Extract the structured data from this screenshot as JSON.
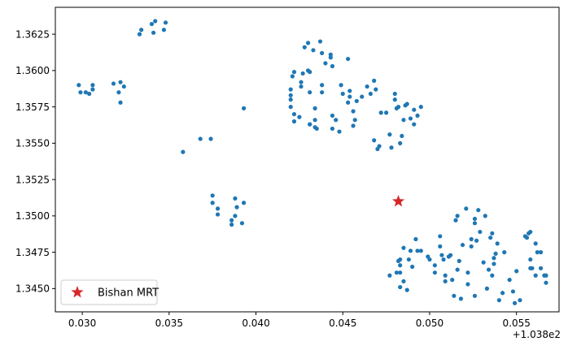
{
  "chart_data": {
    "type": "scatter",
    "title": "",
    "xlabel": "",
    "ylabel": "",
    "xlim": [
      0.02845,
      0.05745
    ],
    "ylim": [
      1.3434,
      1.36435
    ],
    "x_offset_label": "+1.038e2",
    "xticks": [
      0.03,
      0.035,
      0.04,
      0.045,
      0.05,
      0.055
    ],
    "xtick_labels": [
      "0.030",
      "0.035",
      "0.040",
      "0.045",
      "0.050",
      "0.055"
    ],
    "yticks": [
      1.345,
      1.3475,
      1.35,
      1.3525,
      1.355,
      1.3575,
      1.36,
      1.3625
    ],
    "ytick_labels": [
      "1.3450",
      "1.3475",
      "1.3500",
      "1.3525",
      "1.3550",
      "1.3575",
      "1.3600",
      "1.3625"
    ],
    "grid": false,
    "legend": {
      "location": "lower-left",
      "entries": [
        "Bishan MRT"
      ]
    },
    "series": [
      {
        "color": "#1f77b4",
        "marker": "dot",
        "points": [
          [
            0.0298,
            1.359
          ],
          [
            0.0306,
            1.359
          ],
          [
            0.0299,
            1.3585
          ],
          [
            0.0302,
            1.3585
          ],
          [
            0.0304,
            1.3584
          ],
          [
            0.0306,
            1.3587
          ],
          [
            0.0318,
            1.3591
          ],
          [
            0.0322,
            1.3592
          ],
          [
            0.0324,
            1.3589
          ],
          [
            0.0321,
            1.3585
          ],
          [
            0.0322,
            1.3578
          ],
          [
            0.0333,
            1.3625
          ],
          [
            0.0334,
            1.3628
          ],
          [
            0.034,
            1.3632
          ],
          [
            0.0342,
            1.3634
          ],
          [
            0.0348,
            1.3633
          ],
          [
            0.0341,
            1.3626
          ],
          [
            0.0347,
            1.3628
          ],
          [
            0.0393,
            1.3574
          ],
          [
            0.0358,
            1.3544
          ],
          [
            0.0368,
            1.3553
          ],
          [
            0.0374,
            1.3553
          ],
          [
            0.0375,
            1.3514
          ],
          [
            0.0375,
            1.3509
          ],
          [
            0.0378,
            1.3505
          ],
          [
            0.0378,
            1.3501
          ],
          [
            0.0386,
            1.3497
          ],
          [
            0.0386,
            1.3494
          ],
          [
            0.0388,
            1.3512
          ],
          [
            0.0389,
            1.3506
          ],
          [
            0.0388,
            1.35
          ],
          [
            0.0392,
            1.3495
          ],
          [
            0.0393,
            1.3509
          ],
          [
            0.042,
            1.3575
          ],
          [
            0.042,
            1.358
          ],
          [
            0.042,
            1.3583
          ],
          [
            0.042,
            1.3587
          ],
          [
            0.0421,
            1.3596
          ],
          [
            0.0422,
            1.3599
          ],
          [
            0.0422,
            1.357
          ],
          [
            0.0422,
            1.3565
          ],
          [
            0.0425,
            1.3568
          ],
          [
            0.0426,
            1.3589
          ],
          [
            0.0426,
            1.3592
          ],
          [
            0.0427,
            1.3598
          ],
          [
            0.0428,
            1.3616
          ],
          [
            0.043,
            1.3619
          ],
          [
            0.043,
            1.36
          ],
          [
            0.0431,
            1.3599
          ],
          [
            0.0431,
            1.3585
          ],
          [
            0.0431,
            1.3563
          ],
          [
            0.0431,
            1.3563
          ],
          [
            0.0433,
            1.3614
          ],
          [
            0.0434,
            1.3574
          ],
          [
            0.0434,
            1.3566
          ],
          [
            0.0434,
            1.3561
          ],
          [
            0.0435,
            1.356
          ],
          [
            0.0437,
            1.362
          ],
          [
            0.0438,
            1.3612
          ],
          [
            0.0438,
            1.359
          ],
          [
            0.0438,
            1.3585
          ],
          [
            0.044,
            1.3605
          ],
          [
            0.0443,
            1.3611
          ],
          [
            0.0443,
            1.3609
          ],
          [
            0.0444,
            1.3603
          ],
          [
            0.0444,
            1.3569
          ],
          [
            0.0444,
            1.356
          ],
          [
            0.0446,
            1.3566
          ],
          [
            0.0448,
            1.3558
          ],
          [
            0.0449,
            1.359
          ],
          [
            0.045,
            1.3584
          ],
          [
            0.0453,
            1.3608
          ],
          [
            0.0453,
            1.3578
          ],
          [
            0.0454,
            1.3586
          ],
          [
            0.0454,
            1.3582
          ],
          [
            0.0456,
            1.3572
          ],
          [
            0.0456,
            1.3562
          ],
          [
            0.0457,
            1.3566
          ],
          [
            0.0458,
            1.3579
          ],
          [
            0.0461,
            1.3582
          ],
          [
            0.0464,
            1.3589
          ],
          [
            0.0466,
            1.3584
          ],
          [
            0.0468,
            1.3593
          ],
          [
            0.0469,
            1.3587
          ],
          [
            0.0468,
            1.3552
          ],
          [
            0.047,
            1.3546
          ],
          [
            0.0471,
            1.3548
          ],
          [
            0.0472,
            1.3571
          ],
          [
            0.0475,
            1.3571
          ],
          [
            0.0477,
            1.3556
          ],
          [
            0.0478,
            1.3547
          ],
          [
            0.048,
            1.3584
          ],
          [
            0.048,
            1.358
          ],
          [
            0.0481,
            1.3574
          ],
          [
            0.0482,
            1.3575
          ],
          [
            0.0483,
            1.355
          ],
          [
            0.0484,
            1.3555
          ],
          [
            0.0485,
            1.3566
          ],
          [
            0.0486,
            1.3576
          ],
          [
            0.0487,
            1.3577
          ],
          [
            0.0489,
            1.3567
          ],
          [
            0.0491,
            1.3573
          ],
          [
            0.0491,
            1.3563
          ],
          [
            0.0493,
            1.3569
          ],
          [
            0.0495,
            1.3575
          ],
          [
            0.0477,
            1.3459
          ],
          [
            0.0481,
            1.3461
          ],
          [
            0.0482,
            1.3469
          ],
          [
            0.0483,
            1.3466
          ],
          [
            0.0483,
            1.347
          ],
          [
            0.0483,
            1.3461
          ],
          [
            0.0483,
            1.3451
          ],
          [
            0.0485,
            1.3455
          ],
          [
            0.0485,
            1.3478
          ],
          [
            0.0487,
            1.3449
          ],
          [
            0.0488,
            1.347
          ],
          [
            0.0489,
            1.3476
          ],
          [
            0.049,
            1.3465
          ],
          [
            0.0492,
            1.3484
          ],
          [
            0.0493,
            1.3476
          ],
          [
            0.0495,
            1.3476
          ],
          [
            0.0499,
            1.3472
          ],
          [
            0.05,
            1.347
          ],
          [
            0.0503,
            1.3466
          ],
          [
            0.0503,
            1.3461
          ],
          [
            0.0506,
            1.3486
          ],
          [
            0.0506,
            1.3479
          ],
          [
            0.0507,
            1.3473
          ],
          [
            0.0508,
            1.347
          ],
          [
            0.0509,
            1.3455
          ],
          [
            0.0509,
            1.3459
          ],
          [
            0.0511,
            1.3472
          ],
          [
            0.0512,
            1.3473
          ],
          [
            0.0513,
            1.3456
          ],
          [
            0.0514,
            1.3445
          ],
          [
            0.0515,
            1.3497
          ],
          [
            0.0516,
            1.35
          ],
          [
            0.0516,
            1.3463
          ],
          [
            0.0517,
            1.3469
          ],
          [
            0.0518,
            1.3443
          ],
          [
            0.0519,
            1.348
          ],
          [
            0.0521,
            1.3505
          ],
          [
            0.0522,
            1.3461
          ],
          [
            0.0522,
            1.3453
          ],
          [
            0.0524,
            1.3484
          ],
          [
            0.0524,
            1.3479
          ],
          [
            0.0526,
            1.3498
          ],
          [
            0.0526,
            1.3495
          ],
          [
            0.0526,
            1.3445
          ],
          [
            0.0527,
            1.3483
          ],
          [
            0.0528,
            1.3504
          ],
          [
            0.0529,
            1.3489
          ],
          [
            0.0531,
            1.3468
          ],
          [
            0.0532,
            1.35
          ],
          [
            0.0533,
            1.345
          ],
          [
            0.0534,
            1.3463
          ],
          [
            0.0535,
            1.3485
          ],
          [
            0.0536,
            1.3488
          ],
          [
            0.0536,
            1.3459
          ],
          [
            0.0537,
            1.3467
          ],
          [
            0.0537,
            1.3471
          ],
          [
            0.0538,
            1.3474
          ],
          [
            0.0539,
            1.3481
          ],
          [
            0.054,
            1.3442
          ],
          [
            0.0542,
            1.3447
          ],
          [
            0.0543,
            1.3475
          ],
          [
            0.0546,
            1.3456
          ],
          [
            0.0548,
            1.3448
          ],
          [
            0.0549,
            1.344
          ],
          [
            0.055,
            1.3462
          ],
          [
            0.0552,
            1.3442
          ],
          [
            0.0555,
            1.3486
          ],
          [
            0.0556,
            1.3485
          ],
          [
            0.0557,
            1.3488
          ],
          [
            0.0558,
            1.3489
          ],
          [
            0.0558,
            1.347
          ],
          [
            0.0558,
            1.3464
          ],
          [
            0.0559,
            1.3464
          ],
          [
            0.0561,
            1.3481
          ],
          [
            0.0561,
            1.3459
          ],
          [
            0.0562,
            1.3475
          ],
          [
            0.0564,
            1.3475
          ],
          [
            0.0564,
            1.3464
          ],
          [
            0.0566,
            1.3459
          ],
          [
            0.0567,
            1.3459
          ],
          [
            0.0567,
            1.3454
          ]
        ]
      },
      {
        "name": "Bishan MRT",
        "color": "#d62728",
        "marker": "star",
        "points": [
          [
            0.0482,
            1.351
          ]
        ]
      }
    ]
  }
}
